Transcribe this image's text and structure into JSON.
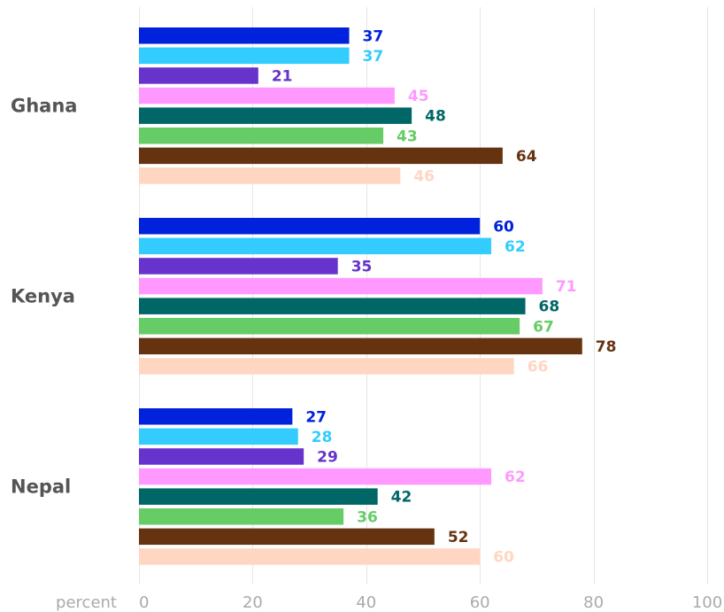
{
  "chart_data": {
    "type": "bar",
    "orientation": "horizontal",
    "categories": [
      "Ghana",
      "Kenya",
      "Nepal"
    ],
    "series": [
      {
        "color": "#0022dd",
        "values": [
          37,
          60,
          27
        ]
      },
      {
        "color": "#33ccff",
        "values": [
          37,
          62,
          28
        ]
      },
      {
        "color": "#6633cc",
        "values": [
          21,
          35,
          29
        ]
      },
      {
        "color": "#ff99ff",
        "values": [
          45,
          71,
          62
        ]
      },
      {
        "color": "#006666",
        "values": [
          48,
          68,
          42
        ]
      },
      {
        "color": "#66cc66",
        "values": [
          43,
          67,
          36
        ]
      },
      {
        "color": "#663311",
        "values": [
          64,
          78,
          52
        ]
      },
      {
        "color": "#ffd6c2",
        "values": [
          46,
          66,
          60
        ]
      }
    ],
    "xlabel": "percent",
    "xlim": [
      0,
      100
    ],
    "xticks": [
      0,
      20,
      40,
      60,
      80,
      100
    ],
    "grid": true,
    "data_labels": true
  }
}
